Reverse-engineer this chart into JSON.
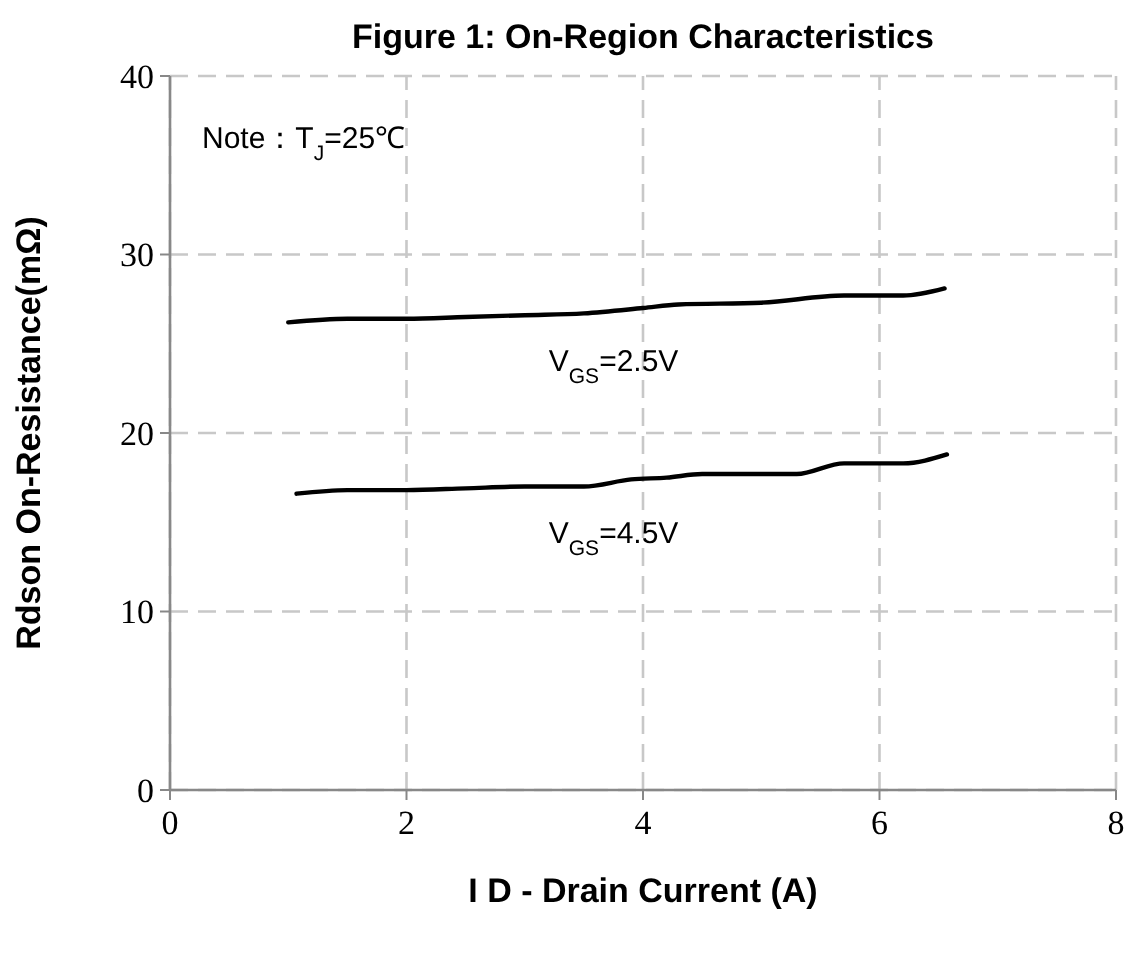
{
  "chart_data": {
    "type": "line",
    "title": "Figure 1: On-Region Characteristics",
    "xlabel": "I D - Drain Current (A)",
    "ylabel": "Rdson On-Resistance(mΩ)",
    "xlim": [
      0,
      8
    ],
    "xticks": [
      0,
      2,
      4,
      6,
      8
    ],
    "ylim": [
      0,
      40
    ],
    "yticks": [
      0,
      10,
      20,
      30,
      40
    ],
    "grid": true,
    "marker": "none",
    "line_style": "solid",
    "annotations": [
      "Note：T$_{J}$=25℃"
    ],
    "series": [
      {
        "name": "V$_{GS}$=2.5V",
        "color": "#000000",
        "x": [
          1.0,
          1.5,
          2,
          2.5,
          3,
          3.5,
          4,
          4.3,
          5,
          5.7,
          6.2,
          6.55
        ],
        "values": [
          26.2,
          26.4,
          26.4,
          26.5,
          26.6,
          26.7,
          27.0,
          27.2,
          27.3,
          27.7,
          27.7,
          28.1
        ]
      },
      {
        "name": "V$_{GS}$=4.5V",
        "color": "#000000",
        "x": [
          1.07,
          1.5,
          2,
          2.5,
          3,
          3.5,
          3.9,
          4.2,
          4.5,
          5,
          5.3,
          5.7,
          6.2,
          6.57
        ],
        "values": [
          16.6,
          16.8,
          16.8,
          16.9,
          17.0,
          17.0,
          17.4,
          17.5,
          17.7,
          17.7,
          17.7,
          18.3,
          18.3,
          18.8
        ]
      }
    ]
  }
}
